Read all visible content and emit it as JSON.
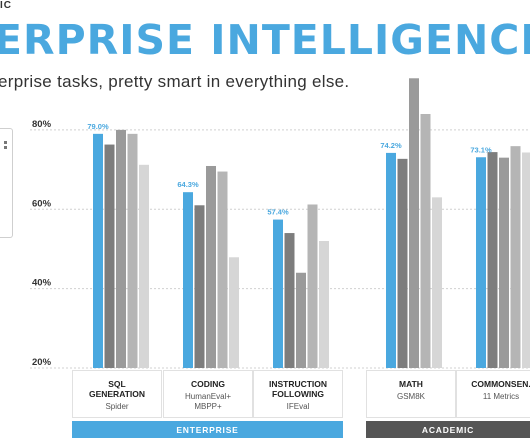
{
  "header": {
    "brand": "IC",
    "headline": "ERPRISE INTELLIGENCE",
    "subtitle": "erprise tasks, pretty smart in everything else."
  },
  "colors": {
    "accent": "#4aa8df",
    "bars": [
      "#4aa8df",
      "#7d7d7d",
      "#9a9a9a",
      "#b5b5b5",
      "#d6d6d6"
    ],
    "enterprise_band": "#4aa8df",
    "academic_band": "#555555"
  },
  "chart_data": {
    "type": "bar",
    "ylim": [
      20,
      84
    ],
    "yticks": [
      20,
      40,
      60,
      80
    ],
    "ytick_labels": [
      "20%",
      "40%",
      "60%",
      "80%"
    ],
    "grid": true,
    "categories": [
      {
        "name": "SQL GENERATION",
        "name_lines": [
          "SQL",
          "GENERATION"
        ],
        "subtitle_lines": [
          "Spider"
        ],
        "values": [
          79.0,
          76.3,
          80.0,
          79.0,
          71.2
        ],
        "label": "79.0%"
      },
      {
        "name": "CODING",
        "name_lines": [
          "CODING"
        ],
        "subtitle_lines": [
          "HumanEval+",
          "MBPP+"
        ],
        "values": [
          64.3,
          61.0,
          70.9,
          69.5,
          47.9
        ],
        "label": "64.3%"
      },
      {
        "name": "INSTRUCTION FOLLOWING",
        "name_lines": [
          "INSTRUCTION",
          "FOLLOWING"
        ],
        "subtitle_lines": [
          "IFEval"
        ],
        "values": [
          57.4,
          54.0,
          44.0,
          61.2,
          52.0
        ],
        "label": "57.4%"
      },
      {
        "name": "MATH",
        "name_lines": [
          "MATH"
        ],
        "subtitle_lines": [
          "GSM8K"
        ],
        "values": [
          74.2,
          72.7,
          93.0,
          84.0,
          63.0
        ],
        "label": "74.2%"
      },
      {
        "name": "COMMONSEN.",
        "name_lines": [
          "COMMONSEN."
        ],
        "subtitle_lines": [
          "11 Metrics"
        ],
        "values": [
          73.1,
          74.4,
          73.0,
          75.9,
          74.3
        ],
        "label": "73.1%"
      }
    ],
    "groups": [
      {
        "label": "ENTERPRISE"
      },
      {
        "label": "ACADEMIC"
      }
    ]
  }
}
